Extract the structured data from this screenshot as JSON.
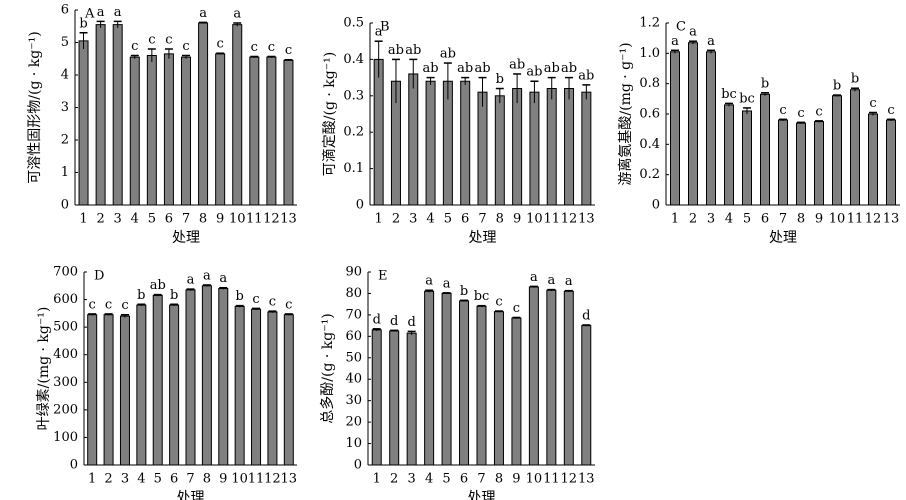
{
  "chart_data": [
    {
      "type": "bar",
      "panel": "A",
      "ylabel": "可溶性固形物/(g · kg⁻¹)",
      "xlabel": "处理",
      "color": "#808080",
      "categories": [
        "1",
        "2",
        "3",
        "4",
        "5",
        "6",
        "7",
        "8",
        "9",
        "10",
        "11",
        "12",
        "13"
      ],
      "values": [
        5.05,
        5.55,
        5.55,
        4.55,
        4.6,
        4.65,
        4.55,
        5.6,
        4.65,
        5.55,
        4.55,
        4.55,
        4.45
      ],
      "errors": [
        0.25,
        0.1,
        0.1,
        0.05,
        0.2,
        0.15,
        0.05,
        0.02,
        0.02,
        0.05,
        0.02,
        0.02,
        0.02
      ],
      "letters": [
        "b",
        "a",
        "a",
        "c",
        "c",
        "c",
        "c",
        "a",
        "c",
        "a",
        "c",
        "c",
        "c"
      ],
      "ylim": [
        0,
        6
      ],
      "yticks": [
        0,
        1,
        2,
        3,
        4,
        5,
        6
      ]
    },
    {
      "type": "bar",
      "panel": "B",
      "ylabel": "可滴定酸/(g · kg⁻¹)",
      "xlabel": "处理",
      "color": "#808080",
      "categories": [
        "1",
        "2",
        "3",
        "4",
        "5",
        "6",
        "7",
        "8",
        "9",
        "10",
        "11",
        "12",
        "13"
      ],
      "values": [
        0.4,
        0.34,
        0.36,
        0.34,
        0.34,
        0.34,
        0.31,
        0.3,
        0.32,
        0.31,
        0.32,
        0.32,
        0.31
      ],
      "errors": [
        0.05,
        0.06,
        0.04,
        0.01,
        0.05,
        0.01,
        0.04,
        0.02,
        0.04,
        0.03,
        0.03,
        0.03,
        0.02
      ],
      "letters": [
        "a",
        "ab",
        "ab",
        "ab",
        "ab",
        "ab",
        "ab",
        "b",
        "ab",
        "ab",
        "ab",
        "ab",
        "ab"
      ],
      "ylim": [
        0,
        0.5
      ],
      "yticks": [
        0,
        0.1,
        0.2,
        0.3,
        0.4,
        0.5
      ]
    },
    {
      "type": "bar",
      "panel": "C",
      "ylabel": "游离氨基酸/(mg · g⁻¹)",
      "xlabel": "处理",
      "color": "#808080",
      "categories": [
        "1",
        "2",
        "3",
        "4",
        "5",
        "6",
        "7",
        "8",
        "9",
        "10",
        "11",
        "12",
        "13"
      ],
      "values": [
        1.01,
        1.07,
        1.01,
        0.66,
        0.62,
        0.73,
        0.56,
        0.54,
        0.55,
        0.72,
        0.76,
        0.6,
        0.56
      ],
      "errors": [
        0.01,
        0.01,
        0.01,
        0.01,
        0.02,
        0.01,
        0.005,
        0.005,
        0.005,
        0.005,
        0.01,
        0.01,
        0.005
      ],
      "letters": [
        "a",
        "a",
        "a",
        "bc",
        "bc",
        "b",
        "c",
        "c",
        "c",
        "b",
        "b",
        "c",
        "c"
      ],
      "ylim": [
        0,
        1.2
      ],
      "yticks": [
        0,
        0.2,
        0.4,
        0.6,
        0.8,
        {
          "value": 1,
          "label": "1.0"
        },
        1.2
      ]
    },
    {
      "type": "bar",
      "panel": "D",
      "ylabel": "叶绿素/(mg · kg⁻¹)",
      "xlabel": "处理",
      "color": "#808080",
      "categories": [
        "1",
        "2",
        "3",
        "4",
        "5",
        "6",
        "7",
        "8",
        "9",
        "10",
        "11",
        "12",
        "13"
      ],
      "values": [
        545,
        545,
        540,
        580,
        615,
        580,
        635,
        650,
        640,
        575,
        565,
        555,
        545
      ],
      "errors": [
        3,
        3,
        5,
        3,
        3,
        3,
        3,
        3,
        3,
        3,
        3,
        3,
        3
      ],
      "letters": [
        "c",
        "c",
        "c",
        "b",
        "ab",
        "b",
        "a",
        "a",
        "a",
        "b",
        "c",
        "c",
        "c"
      ],
      "ylim": [
        0,
        700
      ],
      "yticks": [
        0,
        100,
        200,
        300,
        400,
        500,
        600,
        700
      ]
    },
    {
      "type": "bar",
      "panel": "E",
      "ylabel": "总多酚/(g · kg⁻¹)",
      "xlabel": "处理",
      "color": "#808080",
      "categories": [
        "1",
        "2",
        "3",
        "4",
        "5",
        "6",
        "7",
        "8",
        "9",
        "10",
        "11",
        "12",
        "13"
      ],
      "values": [
        63,
        62.5,
        61.5,
        81,
        80,
        76.5,
        74,
        71.5,
        68.5,
        83,
        81.5,
        81,
        65
      ],
      "errors": [
        0.5,
        0.3,
        0.8,
        0.5,
        0.3,
        0.3,
        0.3,
        0.3,
        0.3,
        0.3,
        0.3,
        0.3,
        0.3
      ],
      "letters": [
        "d",
        "d",
        "d",
        "a",
        "a",
        "b",
        "bc",
        "c",
        "c",
        "a",
        "a",
        "a",
        "d"
      ],
      "ylim": [
        0,
        90
      ],
      "yticks": [
        0,
        10,
        20,
        30,
        40,
        50,
        60,
        70,
        80,
        90
      ]
    }
  ]
}
